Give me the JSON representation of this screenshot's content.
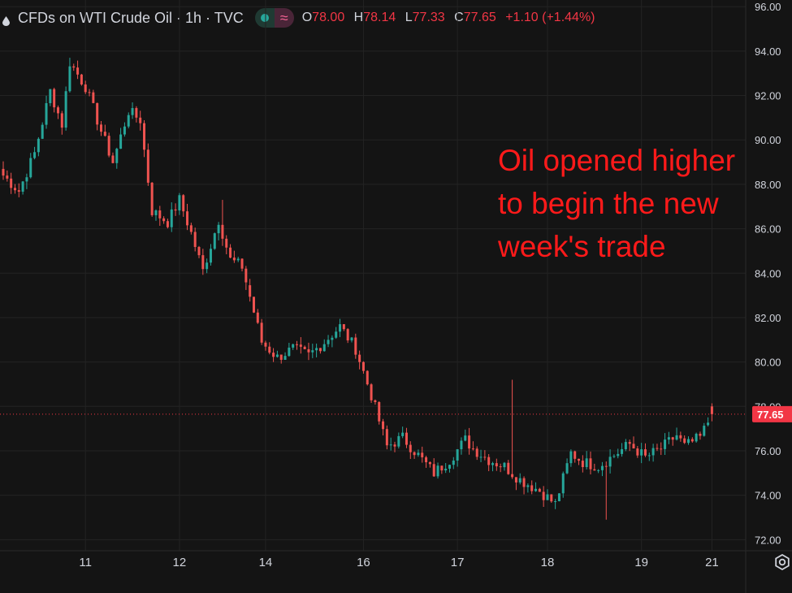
{
  "header": {
    "symbol": "CFDs on WTI Crude Oil · 1h · TVC",
    "open_label": "O",
    "open": "78.00",
    "high_label": "H",
    "high": "78.14",
    "low_label": "L",
    "low": "77.33",
    "close_label": "C",
    "close": "77.65",
    "change": "+1.10 (+1.44%)",
    "icons": [
      "drop-icon",
      "market-open-dot-icon",
      "wave-icon"
    ]
  },
  "annotation": "Oil opened higher to begin the new week's trade",
  "colors": {
    "background": "#141414",
    "up": "#26a69a",
    "down": "#ef5350",
    "grid": "#232323",
    "axis_text": "#d1d4dc",
    "annotation": "#ff1a1a",
    "price_tag": "#f23645"
  },
  "chart_data": {
    "type": "candlestick",
    "title": "CFDs on WTI Crude Oil · 1h · TVC",
    "y_axis_side": "right",
    "ylim": [
      71.5,
      96.3
    ],
    "y_ticks": [
      72,
      74,
      76,
      78,
      80,
      82,
      84,
      86,
      88,
      90,
      92,
      94,
      96
    ],
    "x_ticks": [
      "11",
      "12",
      "14",
      "16",
      "17",
      "18",
      "19",
      "21"
    ],
    "x_tick_index": [
      21,
      45,
      67,
      92,
      116,
      139,
      163,
      181
    ],
    "last_price": 77.65,
    "last_price_label": "77.65",
    "grid": true,
    "keypoints": [
      [
        0,
        88.4
      ],
      [
        4,
        87.7
      ],
      [
        8,
        89.4
      ],
      [
        12,
        92.2
      ],
      [
        15,
        90.7
      ],
      [
        17,
        93.5
      ],
      [
        21,
        92.4
      ],
      [
        25,
        90.4
      ],
      [
        28,
        89.0
      ],
      [
        32,
        91.3
      ],
      [
        35,
        90.9
      ],
      [
        38,
        86.8
      ],
      [
        42,
        86.3
      ],
      [
        45,
        87.3
      ],
      [
        48,
        85.8
      ],
      [
        51,
        84.1
      ],
      [
        55,
        86.4
      ],
      [
        58,
        84.6
      ],
      [
        61,
        84.3
      ],
      [
        66,
        80.9
      ],
      [
        70,
        80.2
      ],
      [
        74,
        80.6
      ],
      [
        78,
        80.3
      ],
      [
        82,
        80.9
      ],
      [
        86,
        81.6
      ],
      [
        90,
        80.6
      ],
      [
        94,
        78.5
      ],
      [
        98,
        76.2
      ],
      [
        102,
        76.6
      ],
      [
        105,
        76.0
      ],
      [
        110,
        75.0
      ],
      [
        114,
        75.6
      ],
      [
        118,
        76.5
      ],
      [
        120,
        76.1
      ],
      [
        124,
        75.6
      ],
      [
        128,
        75.3
      ],
      [
        132,
        74.7
      ],
      [
        137,
        74.2
      ],
      [
        141,
        73.6
      ],
      [
        145,
        75.9
      ],
      [
        148,
        75.5
      ],
      [
        152,
        75.3
      ],
      [
        156,
        75.8
      ],
      [
        160,
        76.3
      ],
      [
        164,
        75.7
      ],
      [
        168,
        76.1
      ],
      [
        172,
        76.7
      ],
      [
        174,
        76.2
      ],
      [
        178,
        76.6
      ],
      [
        181,
        77.65
      ]
    ],
    "gaps_after_index": [
      62,
      179
    ]
  }
}
